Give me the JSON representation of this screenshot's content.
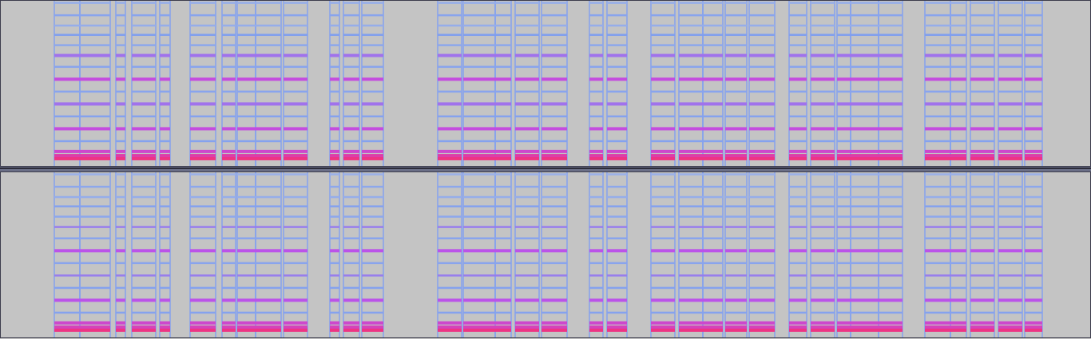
{
  "chart_data": {
    "type": "spectrogram",
    "xlim": [
      0,
      13.66
    ],
    "ylim": [
      0,
      8000
    ],
    "zlim": [
      -60,
      0
    ],
    "tick_labels": false,
    "channels": [
      {
        "frequencies": [
          350,
          500,
          700,
          1200,
          1800,
          2400,
          3000,
          3600,
          4200,
          4800,
          5350,
          5850,
          6350,
          6800,
          7300,
          7900
        ],
        "levels": [
          -4,
          -8,
          -12,
          -34,
          -14,
          -34,
          -22,
          -36,
          -14,
          -36,
          -22,
          -38,
          -32,
          -42,
          -36,
          -42
        ],
        "edge_level": -34,
        "notes": [
          [
            0.68,
            1.0
          ],
          [
            1.0,
            1.38
          ],
          [
            1.45,
            1.57
          ],
          [
            1.65,
            1.95
          ],
          [
            2.0,
            2.13
          ],
          [
            2.38,
            2.7
          ],
          [
            2.78,
            2.95
          ],
          [
            2.97,
            3.2
          ],
          [
            3.2,
            3.52
          ],
          [
            3.55,
            3.85
          ],
          [
            4.13,
            4.25
          ],
          [
            4.3,
            4.5
          ],
          [
            4.53,
            4.8
          ],
          [
            5.48,
            5.78
          ],
          [
            5.8,
            6.2
          ],
          [
            6.2,
            6.4
          ],
          [
            6.45,
            6.75
          ],
          [
            6.78,
            7.1
          ],
          [
            7.38,
            7.55
          ],
          [
            7.6,
            7.85
          ],
          [
            8.15,
            8.45
          ],
          [
            8.5,
            8.8
          ],
          [
            8.8,
            9.05
          ],
          [
            9.08,
            9.35
          ],
          [
            9.38,
            9.7
          ],
          [
            9.88,
            10.1
          ],
          [
            10.15,
            10.45
          ],
          [
            10.48,
            10.65
          ],
          [
            10.65,
            11.0
          ],
          [
            11.0,
            11.3
          ],
          [
            11.58,
            11.9
          ],
          [
            11.9,
            12.1
          ],
          [
            12.15,
            12.45
          ],
          [
            12.5,
            12.8
          ],
          [
            12.83,
            13.05
          ]
        ]
      },
      {
        "frequencies": [
          350,
          500,
          700,
          1200,
          1800,
          2400,
          3000,
          3600,
          4200,
          4800,
          5350,
          5850,
          6350,
          6800,
          7300,
          7900
        ],
        "levels": [
          -4,
          -10,
          -12,
          -34,
          -16,
          -34,
          -24,
          -36,
          -16,
          -36,
          -24,
          -38,
          -34,
          -42,
          -38,
          -44
        ],
        "edge_level": -34,
        "notes": [
          [
            0.68,
            1.0
          ],
          [
            1.0,
            1.38
          ],
          [
            1.45,
            1.57
          ],
          [
            1.65,
            1.95
          ],
          [
            2.0,
            2.13
          ],
          [
            2.38,
            2.7
          ],
          [
            2.78,
            2.95
          ],
          [
            2.97,
            3.2
          ],
          [
            3.2,
            3.52
          ],
          [
            3.55,
            3.85
          ],
          [
            4.13,
            4.25
          ],
          [
            4.3,
            4.5
          ],
          [
            4.53,
            4.8
          ],
          [
            5.48,
            5.78
          ],
          [
            5.8,
            6.2
          ],
          [
            6.2,
            6.4
          ],
          [
            6.45,
            6.75
          ],
          [
            6.78,
            7.1
          ],
          [
            7.38,
            7.55
          ],
          [
            7.6,
            7.85
          ],
          [
            8.15,
            8.45
          ],
          [
            8.5,
            8.8
          ],
          [
            8.8,
            9.05
          ],
          [
            9.08,
            9.35
          ],
          [
            9.38,
            9.7
          ],
          [
            9.88,
            10.1
          ],
          [
            10.15,
            10.45
          ],
          [
            10.48,
            10.65
          ],
          [
            10.65,
            11.0
          ],
          [
            11.0,
            11.3
          ],
          [
            11.58,
            11.9
          ],
          [
            11.9,
            12.1
          ],
          [
            12.15,
            12.45
          ],
          [
            12.5,
            12.8
          ],
          [
            12.83,
            13.05
          ]
        ]
      }
    ]
  }
}
